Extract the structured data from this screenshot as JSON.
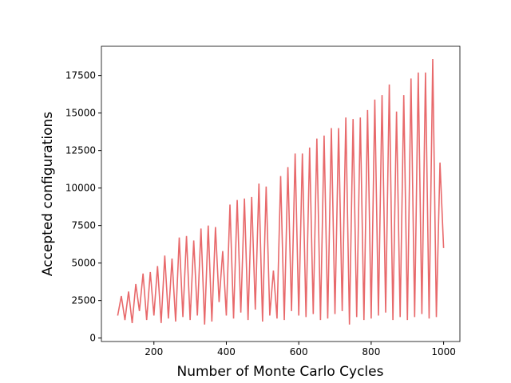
{
  "chart_data": {
    "type": "line",
    "xlabel": "Number of Monte Carlo Cycles",
    "ylabel": "Accepted configurations",
    "x": [
      100,
      110,
      120,
      130,
      140,
      150,
      160,
      170,
      180,
      190,
      200,
      210,
      220,
      230,
      240,
      250,
      260,
      270,
      280,
      290,
      300,
      310,
      320,
      330,
      340,
      350,
      360,
      370,
      380,
      390,
      400,
      410,
      420,
      430,
      440,
      450,
      460,
      470,
      480,
      490,
      500,
      510,
      520,
      530,
      540,
      550,
      560,
      570,
      580,
      590,
      600,
      610,
      620,
      630,
      640,
      650,
      660,
      670,
      680,
      690,
      700,
      710,
      720,
      730,
      740,
      750,
      760,
      770,
      780,
      790,
      800,
      810,
      820,
      830,
      840,
      850,
      860,
      870,
      880,
      890,
      900,
      910,
      920,
      930,
      940,
      950,
      960,
      970,
      980,
      990,
      1000
    ],
    "series": [
      {
        "color": "#e8696b",
        "values": [
          1500,
          2800,
          1200,
          3100,
          1000,
          3600,
          1800,
          4300,
          1200,
          4400,
          1500,
          4800,
          1000,
          5500,
          1300,
          5300,
          1100,
          6700,
          1400,
          6800,
          1200,
          6500,
          1500,
          7300,
          900,
          7500,
          1100,
          7400,
          2400,
          5800,
          1500,
          8900,
          1300,
          9200,
          1700,
          9300,
          1200,
          9400,
          1900,
          10300,
          1100,
          10100,
          1500,
          4500,
          1300,
          10800,
          1200,
          11400,
          1800,
          12300,
          1500,
          12300,
          1400,
          12700,
          1600,
          13300,
          1200,
          13500,
          1300,
          14000,
          1600,
          14000,
          1800,
          14700,
          900,
          14600,
          1400,
          14700,
          1200,
          15200,
          1300,
          15900,
          1500,
          16200,
          1700,
          16900,
          1200,
          15100,
          1400,
          16200,
          1200,
          17300,
          1400,
          17700,
          1600,
          17700,
          1300,
          18600,
          1400,
          11700,
          6000
        ]
      }
    ],
    "xlim": [
      55,
      1045
    ],
    "ylim": [
      -230,
      19450
    ],
    "xticks": [
      200,
      400,
      600,
      800,
      1000
    ],
    "yticks": [
      0,
      2500,
      5000,
      7500,
      10000,
      12500,
      15000,
      17500
    ]
  }
}
